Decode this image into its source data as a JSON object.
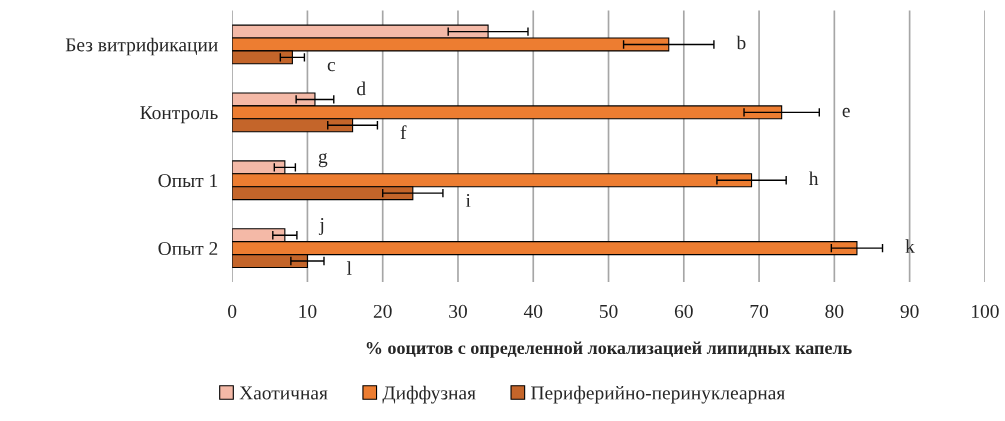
{
  "chart_data": {
    "type": "bar",
    "orientation": "horizontal",
    "categories": [
      "Без витрификации",
      "Контроль",
      "Опыт 1",
      "Опыт 2"
    ],
    "series": [
      {
        "name": "Хаотичная",
        "color": "#f4b9a7",
        "values": [
          34,
          11,
          7,
          7
        ],
        "errors": [
          5.3,
          2.5,
          1.4,
          1.6
        ]
      },
      {
        "name": "Диффузная",
        "color": "#ed7d31",
        "values": [
          58,
          73,
          69,
          83
        ],
        "errors": [
          6,
          5,
          4.6,
          3.4
        ]
      },
      {
        "name": "Периферийно-перинуклеарная",
        "color": "#c4652a",
        "values": [
          8,
          16,
          24,
          10
        ],
        "errors": [
          1.6,
          3.3,
          4,
          2.2
        ]
      }
    ],
    "xlim": [
      0,
      100
    ],
    "xticks": [
      0,
      10,
      20,
      30,
      40,
      50,
      60,
      70,
      80,
      90,
      100
    ],
    "xlabel": "% ооцитов с определенной локализацией липидных капель",
    "grid": "x",
    "legend": "bottom",
    "annotations": [
      "b",
      "c",
      "d",
      "e",
      "f",
      "g",
      "h",
      "i",
      "j",
      "k",
      "l"
    ]
  }
}
